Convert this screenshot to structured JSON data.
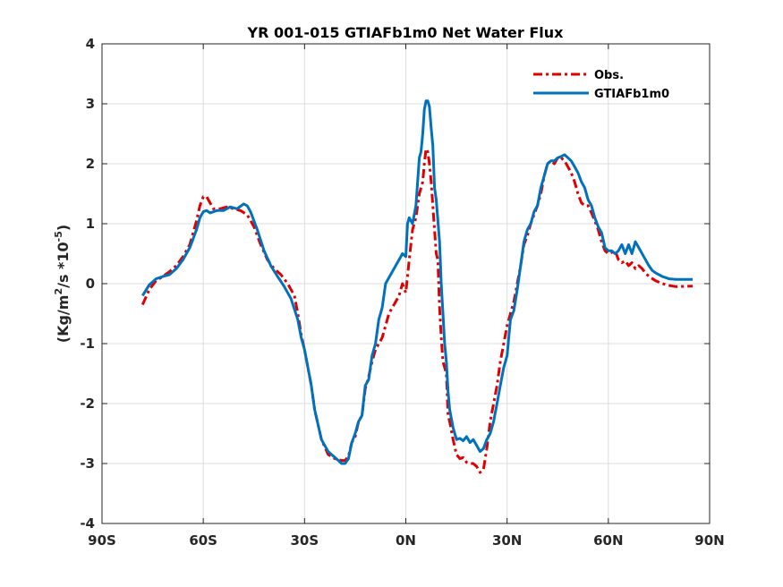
{
  "chart_data": {
    "type": "line",
    "title": "YR 001-015 GTIAFb1m0  Net Water Flux",
    "xlabel": "",
    "ylabel": {
      "prefix": "(Kg/m",
      "sup1": "2",
      "middle": "/s *10",
      "sup2": "-5",
      "suffix": ")"
    },
    "xlim": [
      -90,
      90
    ],
    "ylim": [
      -4,
      4
    ],
    "grid": true,
    "legend_position": "top-right",
    "x_ticks": [
      {
        "value": -90,
        "label": "90S"
      },
      {
        "value": -60,
        "label": "60S"
      },
      {
        "value": -30,
        "label": "30S"
      },
      {
        "value": 0,
        "label": "0N"
      },
      {
        "value": 30,
        "label": "30N"
      },
      {
        "value": 60,
        "label": "60N"
      },
      {
        "value": 90,
        "label": "90N"
      }
    ],
    "y_ticks": [
      {
        "value": 4,
        "label": "4"
      },
      {
        "value": 3,
        "label": "3"
      },
      {
        "value": 2,
        "label": "2"
      },
      {
        "value": 1,
        "label": "1"
      },
      {
        "value": 0,
        "label": "0"
      },
      {
        "value": -1,
        "label": "-1"
      },
      {
        "value": -2,
        "label": "-2"
      },
      {
        "value": -3,
        "label": "-3"
      },
      {
        "value": -4,
        "label": "-4"
      }
    ],
    "series": [
      {
        "name": "Obs.",
        "color": "#e00000",
        "style": "dash-dot",
        "points": [
          [
            -78,
            -0.35
          ],
          [
            -76,
            -0.1
          ],
          [
            -74,
            0.05
          ],
          [
            -72,
            0.12
          ],
          [
            -70,
            0.2
          ],
          [
            -68,
            0.3
          ],
          [
            -66,
            0.45
          ],
          [
            -64,
            0.65
          ],
          [
            -62,
            1.05
          ],
          [
            -61,
            1.3
          ],
          [
            -60,
            1.45
          ],
          [
            -59,
            1.45
          ],
          [
            -58,
            1.35
          ],
          [
            -57,
            1.25
          ],
          [
            -55,
            1.25
          ],
          [
            -53,
            1.28
          ],
          [
            -51,
            1.25
          ],
          [
            -49,
            1.22
          ],
          [
            -47,
            1.15
          ],
          [
            -45,
            0.95
          ],
          [
            -43,
            0.65
          ],
          [
            -41,
            0.4
          ],
          [
            -39,
            0.25
          ],
          [
            -37,
            0.15
          ],
          [
            -35,
            0.0
          ],
          [
            -33,
            -0.2
          ],
          [
            -32,
            -0.5
          ],
          [
            -31,
            -0.85
          ],
          [
            -30,
            -1.1
          ],
          [
            -28,
            -1.7
          ],
          [
            -27,
            -2.1
          ],
          [
            -25,
            -2.6
          ],
          [
            -23,
            -2.85
          ],
          [
            -21,
            -2.92
          ],
          [
            -19,
            -2.95
          ],
          [
            -18,
            -2.95
          ],
          [
            -17,
            -2.88
          ],
          [
            -16,
            -2.65
          ],
          [
            -15,
            -2.55
          ],
          [
            -14,
            -2.3
          ],
          [
            -13,
            -2.2
          ],
          [
            -12,
            -1.75
          ],
          [
            -11,
            -1.55
          ],
          [
            -10,
            -1.3
          ],
          [
            -9,
            -1.1
          ],
          [
            -7,
            -0.9
          ],
          [
            -6,
            -0.7
          ],
          [
            -5,
            -0.5
          ],
          [
            -4,
            -0.4
          ],
          [
            -3,
            -0.3
          ],
          [
            -2,
            -0.2
          ],
          [
            -1,
            0.0
          ],
          [
            0,
            -0.15
          ],
          [
            1,
            0.4
          ],
          [
            2,
            0.9
          ],
          [
            3,
            1.1
          ],
          [
            4,
            1.5
          ],
          [
            5,
            1.7
          ],
          [
            5.5,
            2.0
          ],
          [
            6,
            2.25
          ],
          [
            6.5,
            2.2
          ],
          [
            7,
            2.0
          ],
          [
            7.5,
            1.7
          ],
          [
            8,
            1.3
          ],
          [
            9,
            0.5
          ],
          [
            9.5,
            0.4
          ],
          [
            10,
            -0.4
          ],
          [
            10.5,
            -0.9
          ],
          [
            11,
            -1.3
          ],
          [
            12,
            -1.5
          ],
          [
            12.5,
            -2.2
          ],
          [
            13,
            -2.3
          ],
          [
            14,
            -2.6
          ],
          [
            15,
            -2.85
          ],
          [
            16,
            -2.92
          ],
          [
            17,
            -2.9
          ],
          [
            18,
            -2.98
          ],
          [
            19,
            -3.0
          ],
          [
            20,
            -3.0
          ],
          [
            21,
            -3.05
          ],
          [
            22,
            -3.15
          ],
          [
            23,
            -3.1
          ],
          [
            24,
            -2.75
          ],
          [
            25,
            -2.3
          ],
          [
            26,
            -2.0
          ],
          [
            27,
            -1.7
          ],
          [
            28,
            -1.3
          ],
          [
            29,
            -1.0
          ],
          [
            30,
            -0.7
          ],
          [
            31,
            -0.5
          ],
          [
            32,
            -0.3
          ],
          [
            33,
            0.0
          ],
          [
            34,
            0.3
          ],
          [
            35,
            0.65
          ],
          [
            36,
            0.8
          ],
          [
            37,
            1.0
          ],
          [
            38,
            1.15
          ],
          [
            39,
            1.3
          ],
          [
            40,
            1.5
          ],
          [
            41,
            1.8
          ],
          [
            42,
            2.0
          ],
          [
            43,
            2.05
          ],
          [
            44,
            2.0
          ],
          [
            45,
            2.1
          ],
          [
            46,
            2.1
          ],
          [
            47,
            2.05
          ],
          [
            48,
            1.95
          ],
          [
            49,
            1.85
          ],
          [
            50,
            1.7
          ],
          [
            51,
            1.5
          ],
          [
            52,
            1.35
          ],
          [
            53,
            1.3
          ],
          [
            54,
            1.3
          ],
          [
            55,
            1.18
          ],
          [
            56,
            1.05
          ],
          [
            57,
            0.9
          ],
          [
            58,
            0.7
          ],
          [
            59,
            0.55
          ],
          [
            60,
            0.5
          ],
          [
            61,
            0.52
          ],
          [
            62,
            0.55
          ],
          [
            63,
            0.4
          ],
          [
            64,
            0.35
          ],
          [
            65,
            0.38
          ],
          [
            66,
            0.3
          ],
          [
            67,
            0.35
          ],
          [
            68,
            0.25
          ],
          [
            69,
            0.3
          ],
          [
            70,
            0.25
          ],
          [
            71,
            0.18
          ],
          [
            72,
            0.12
          ],
          [
            74,
            0.05
          ],
          [
            76,
            0.0
          ],
          [
            78,
            -0.03
          ],
          [
            80,
            -0.05
          ],
          [
            85,
            -0.04
          ]
        ]
      },
      {
        "name": "GTIAFb1m0",
        "color": "#0072bd",
        "style": "solid",
        "points": [
          [
            -78,
            -0.2
          ],
          [
            -76,
            -0.02
          ],
          [
            -74,
            0.08
          ],
          [
            -72,
            0.12
          ],
          [
            -70,
            0.15
          ],
          [
            -68,
            0.25
          ],
          [
            -66,
            0.4
          ],
          [
            -64,
            0.6
          ],
          [
            -62,
            0.9
          ],
          [
            -61,
            1.1
          ],
          [
            -60,
            1.2
          ],
          [
            -59,
            1.22
          ],
          [
            -58,
            1.18
          ],
          [
            -56,
            1.22
          ],
          [
            -54,
            1.22
          ],
          [
            -52,
            1.28
          ],
          [
            -50,
            1.25
          ],
          [
            -48,
            1.33
          ],
          [
            -47,
            1.3
          ],
          [
            -46,
            1.2
          ],
          [
            -44,
            0.9
          ],
          [
            -42,
            0.55
          ],
          [
            -40,
            0.3
          ],
          [
            -38,
            0.12
          ],
          [
            -36,
            -0.05
          ],
          [
            -34,
            -0.25
          ],
          [
            -32,
            -0.6
          ],
          [
            -31,
            -0.9
          ],
          [
            -30,
            -1.1
          ],
          [
            -28,
            -1.7
          ],
          [
            -27,
            -2.1
          ],
          [
            -25,
            -2.6
          ],
          [
            -23,
            -2.8
          ],
          [
            -21,
            -2.9
          ],
          [
            -19,
            -3.0
          ],
          [
            -18,
            -3.0
          ],
          [
            -17,
            -2.92
          ],
          [
            -16,
            -2.65
          ],
          [
            -15,
            -2.5
          ],
          [
            -14,
            -2.3
          ],
          [
            -13,
            -2.2
          ],
          [
            -12,
            -1.7
          ],
          [
            -11,
            -1.6
          ],
          [
            -10,
            -1.2
          ],
          [
            -9,
            -1.0
          ],
          [
            -8,
            -0.6
          ],
          [
            -7,
            -0.4
          ],
          [
            -6,
            0.0
          ],
          [
            -5,
            0.1
          ],
          [
            -4,
            0.2
          ],
          [
            -3,
            0.3
          ],
          [
            -2,
            0.4
          ],
          [
            -1,
            0.5
          ],
          [
            0,
            0.45
          ],
          [
            0.5,
            1.0
          ],
          [
            1,
            1.1
          ],
          [
            2,
            1.0
          ],
          [
            3,
            1.3
          ],
          [
            4,
            2.1
          ],
          [
            4.5,
            2.2
          ],
          [
            5,
            2.5
          ],
          [
            5.5,
            2.9
          ],
          [
            6,
            3.05
          ],
          [
            6.5,
            3.05
          ],
          [
            7,
            2.95
          ],
          [
            7.5,
            2.6
          ],
          [
            8,
            2.3
          ],
          [
            8.5,
            1.6
          ],
          [
            9,
            1.4
          ],
          [
            10,
            0.7
          ],
          [
            10.5,
            0.0
          ],
          [
            11,
            -0.5
          ],
          [
            11.5,
            -1.0
          ],
          [
            12,
            -1.3
          ],
          [
            12.5,
            -1.8
          ],
          [
            13,
            -2.1
          ],
          [
            14,
            -2.4
          ],
          [
            15,
            -2.6
          ],
          [
            16,
            -2.58
          ],
          [
            17,
            -2.62
          ],
          [
            18,
            -2.55
          ],
          [
            19,
            -2.65
          ],
          [
            20,
            -2.6
          ],
          [
            21,
            -2.7
          ],
          [
            22,
            -2.8
          ],
          [
            23,
            -2.75
          ],
          [
            24,
            -2.6
          ],
          [
            25,
            -2.5
          ],
          [
            26,
            -2.3
          ],
          [
            27,
            -2.0
          ],
          [
            28,
            -1.7
          ],
          [
            29,
            -1.4
          ],
          [
            30,
            -1.2
          ],
          [
            31,
            -0.6
          ],
          [
            32,
            -0.45
          ],
          [
            33,
            -0.1
          ],
          [
            34,
            0.3
          ],
          [
            35,
            0.7
          ],
          [
            36,
            0.9
          ],
          [
            37,
            1.0
          ],
          [
            38,
            1.2
          ],
          [
            39,
            1.3
          ],
          [
            40,
            1.6
          ],
          [
            41,
            1.8
          ],
          [
            42,
            2.0
          ],
          [
            43,
            2.05
          ],
          [
            44,
            2.05
          ],
          [
            45,
            2.1
          ],
          [
            46,
            2.12
          ],
          [
            47,
            2.15
          ],
          [
            48,
            2.1
          ],
          [
            49,
            2.05
          ],
          [
            50,
            1.95
          ],
          [
            51,
            1.85
          ],
          [
            52,
            1.7
          ],
          [
            53,
            1.6
          ],
          [
            54,
            1.4
          ],
          [
            55,
            1.3
          ],
          [
            56,
            1.1
          ],
          [
            57,
            0.95
          ],
          [
            58,
            0.85
          ],
          [
            59,
            0.6
          ],
          [
            60,
            0.55
          ],
          [
            61,
            0.55
          ],
          [
            62,
            0.5
          ],
          [
            63,
            0.55
          ],
          [
            64,
            0.65
          ],
          [
            65,
            0.5
          ],
          [
            66,
            0.65
          ],
          [
            67,
            0.5
          ],
          [
            68,
            0.7
          ],
          [
            69,
            0.6
          ],
          [
            70,
            0.5
          ],
          [
            71,
            0.4
          ],
          [
            72,
            0.3
          ],
          [
            73,
            0.22
          ],
          [
            74,
            0.18
          ],
          [
            76,
            0.12
          ],
          [
            78,
            0.08
          ],
          [
            80,
            0.07
          ],
          [
            85,
            0.07
          ]
        ]
      }
    ]
  }
}
